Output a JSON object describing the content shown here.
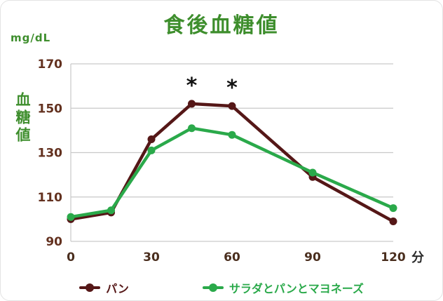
{
  "page": {
    "title": "食後血糖値",
    "y_unit": "mg/dL",
    "y_axis_label": "血糖値",
    "x_axis_suffix": "分"
  },
  "colors": {
    "title_green": "#3e8e2d",
    "series_pan": "#551717",
    "series_salad": "#2aa94a",
    "tick_label": "#63311f",
    "grid": "#c9c9c9",
    "annotation": "#111111"
  },
  "chart_data": {
    "type": "line",
    "title": "食後血糖値",
    "xlabel": "分",
    "ylabel": "血糖値 (mg/dL)",
    "x": [
      0,
      15,
      30,
      45,
      60,
      90,
      120
    ],
    "series": [
      {
        "name": "パン",
        "color": "#551717",
        "values": [
          100,
          103,
          136,
          152,
          151,
          119,
          99
        ]
      },
      {
        "name": "サラダとパンとマヨネーズ",
        "color": "#2aa94a",
        "values": [
          101,
          104,
          131,
          141,
          138,
          121,
          105
        ]
      }
    ],
    "yticks": [
      90,
      110,
      130,
      150,
      170
    ],
    "xticks": [
      0,
      30,
      60,
      90,
      120
    ],
    "ylim": [
      90,
      170
    ],
    "xlim": [
      0,
      120
    ],
    "grid": "horizontal",
    "legend_position": "bottom",
    "annotations": [
      {
        "x": 45,
        "y": 152,
        "text": "*"
      },
      {
        "x": 60,
        "y": 151,
        "text": "*"
      }
    ]
  },
  "legend": {
    "items": [
      {
        "label": "パン",
        "color": "#551717"
      },
      {
        "label": "サラダとパンとマヨネーズ",
        "color": "#2aa94a"
      }
    ]
  }
}
